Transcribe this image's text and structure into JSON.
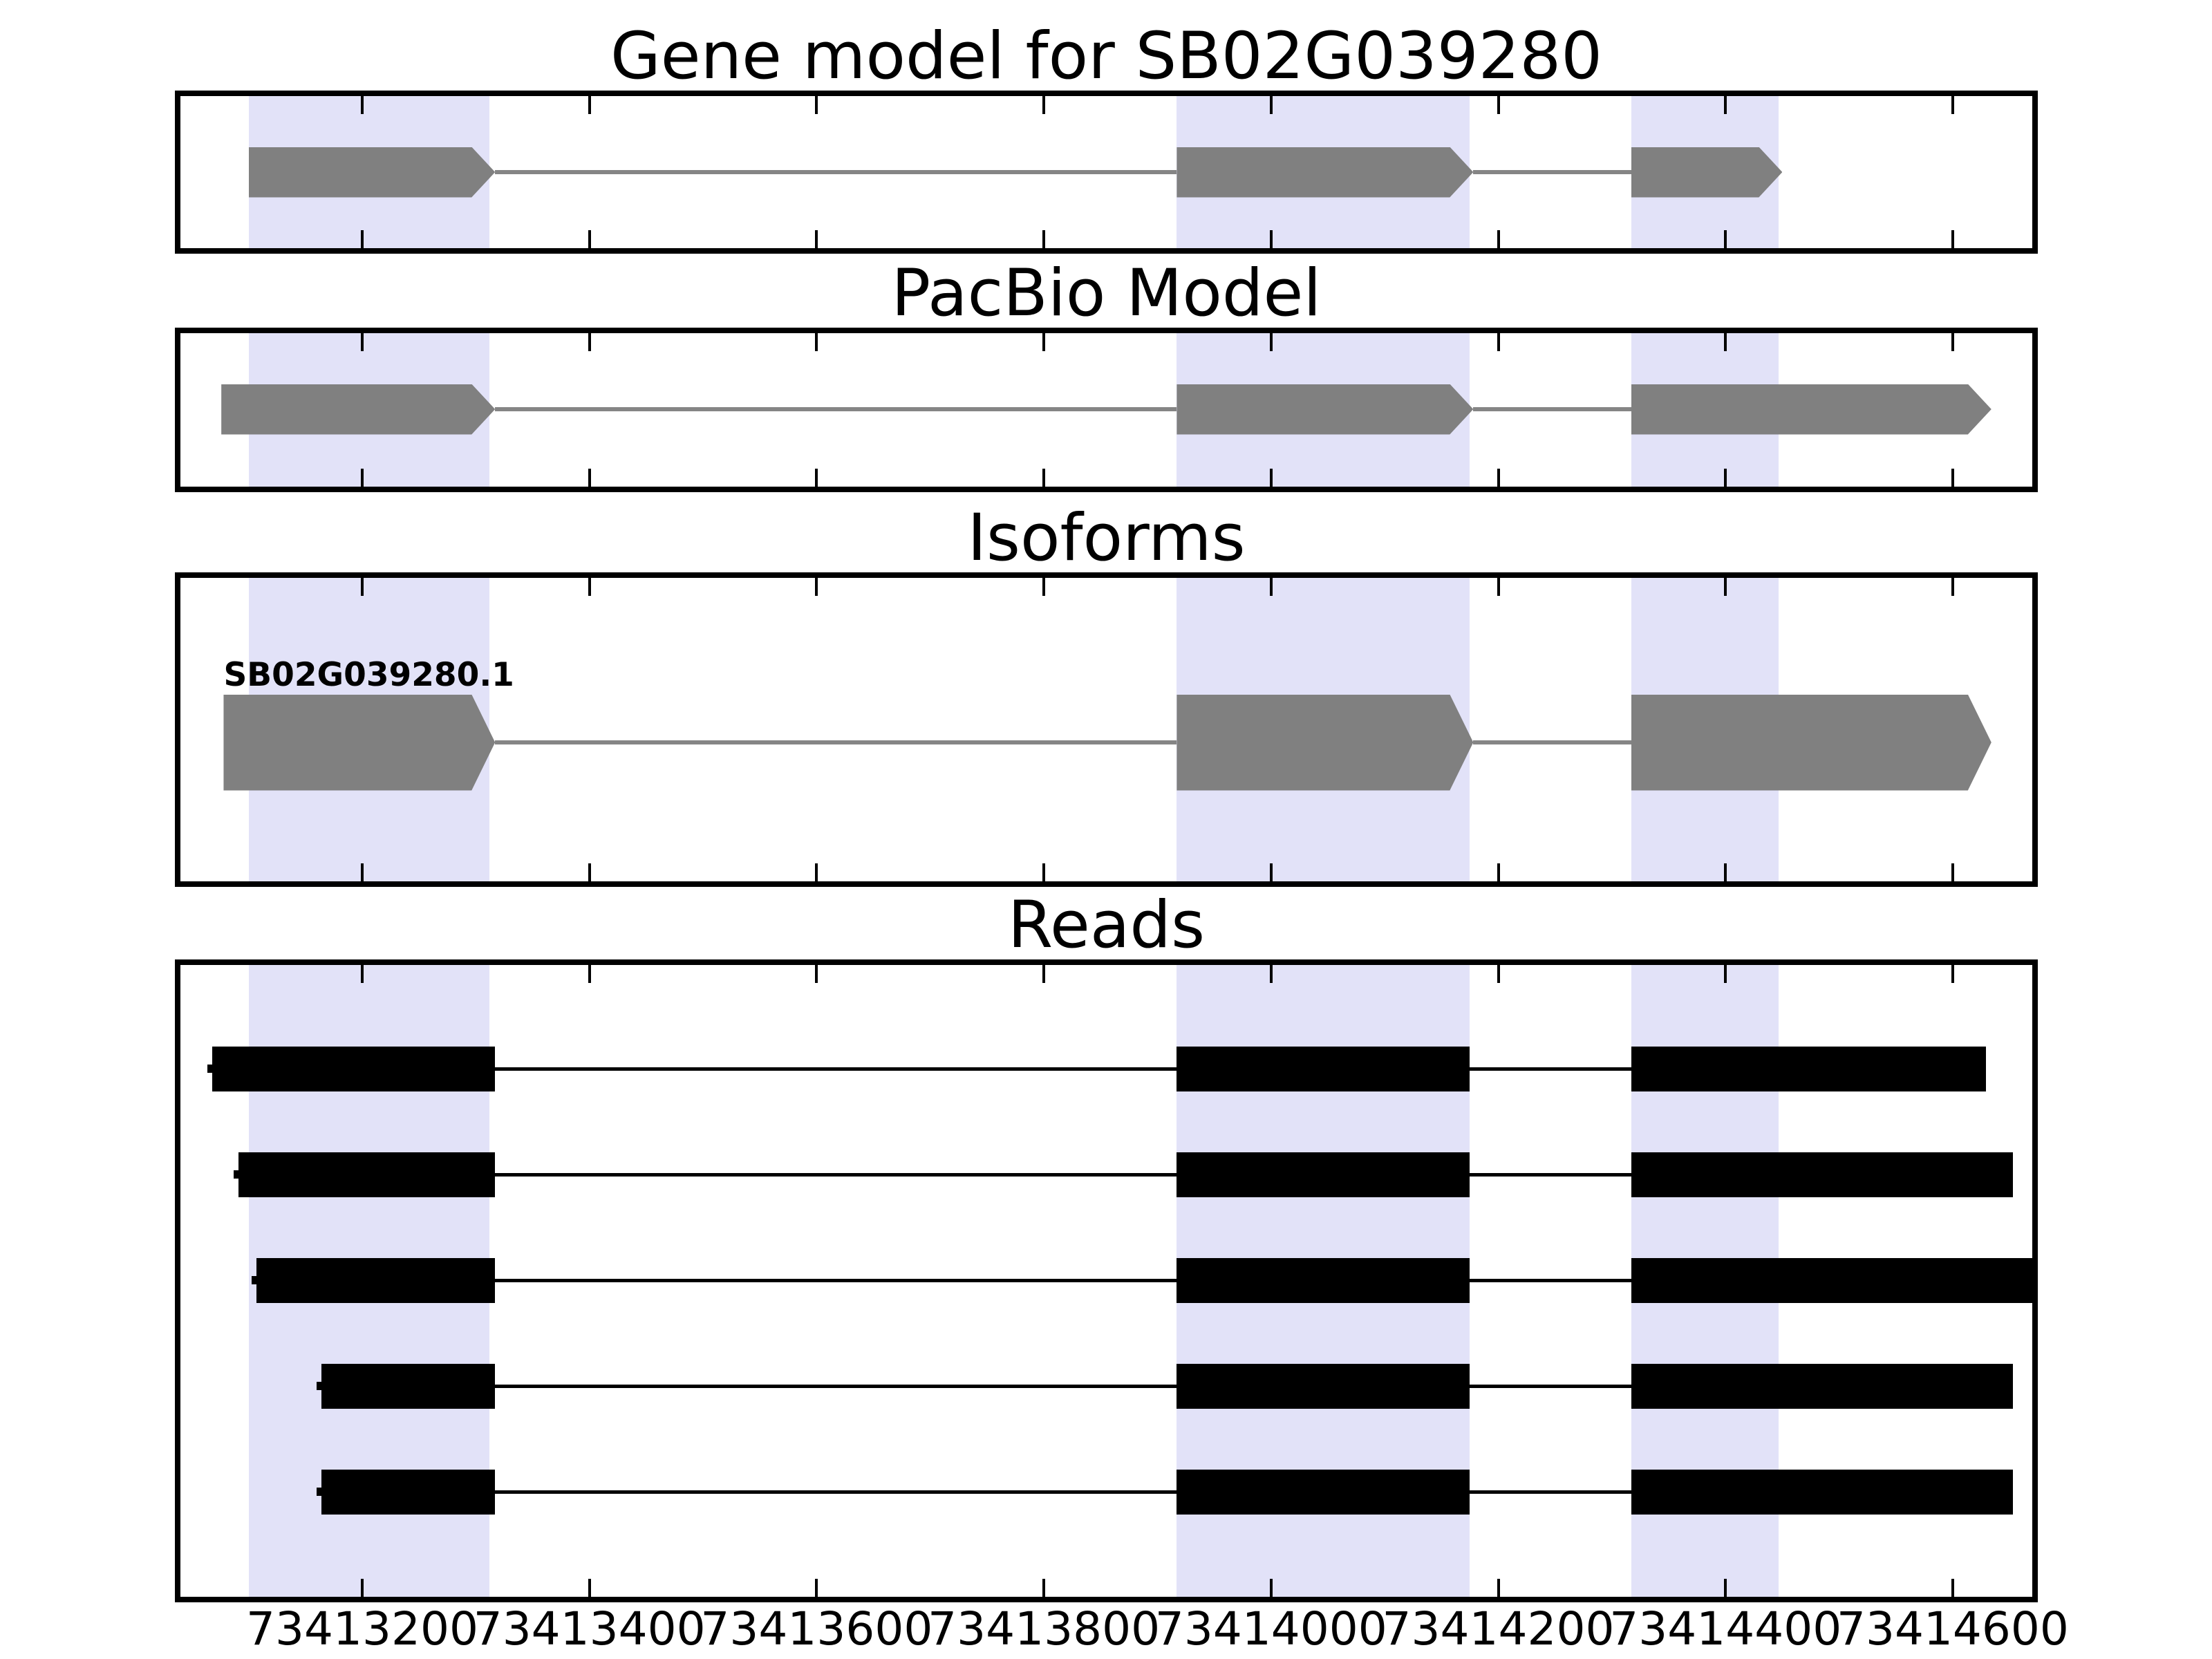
{
  "figure": {
    "background": "#ffffff",
    "band_color": "#e2e2f8",
    "model_color": "#808080",
    "read_color": "#000000",
    "spine_color": "#000000"
  },
  "chart_data": {
    "type": "other",
    "subtype": "genome-browser-gene-model-tracks",
    "title": "Gene model for SB02G039280",
    "gene_id": "SB02G039280",
    "xlabel": "",
    "ylabel": "",
    "grid": false,
    "legend": "none",
    "xlim": [
      73413040,
      73414670
    ],
    "xticks": [
      73413200,
      73413400,
      73413600,
      73413800,
      73414000,
      73414200,
      73414400,
      73414600
    ],
    "xtick_labels": [
      "73413200",
      "73413400",
      "73413600",
      "73413800",
      "73414000",
      "73414200",
      "73414400",
      "73414600"
    ],
    "strand_direction": "right",
    "highlight_regions": [
      [
        73413100,
        73413312
      ],
      [
        73413917,
        73414175
      ],
      [
        73414317,
        73414447
      ]
    ],
    "tracks": [
      {
        "name": "Gene model for SB02G039280",
        "kind": "model",
        "color": "#808080",
        "exons": [
          [
            73413100,
            73413317
          ],
          [
            73413917,
            73414178
          ],
          [
            73414317,
            73414450
          ]
        ]
      },
      {
        "name": "PacBio Model",
        "kind": "model",
        "color": "#808080",
        "exons": [
          [
            73413076,
            73413317
          ],
          [
            73413917,
            73414178
          ],
          [
            73414317,
            73414634
          ]
        ]
      },
      {
        "name": "Isoforms",
        "kind": "isoform",
        "color": "#808080",
        "isoforms": [
          {
            "label": "SB02G039280.1",
            "exons": [
              [
                73413078,
                73413317
              ],
              [
                73413917,
                73414178
              ],
              [
                73414317,
                73414634
              ]
            ]
          }
        ]
      },
      {
        "name": "Reads",
        "kind": "reads",
        "color": "#000000",
        "reads": [
          [
            [
              73413068,
              73413317
            ],
            [
              73413917,
              73414175
            ],
            [
              73414317,
              73414629
            ]
          ],
          [
            [
              73413091,
              73413317
            ],
            [
              73413917,
              73414175
            ],
            [
              73414317,
              73414653
            ]
          ],
          [
            [
              73413107,
              73413317
            ],
            [
              73413917,
              73414175
            ],
            [
              73414317,
              73414670
            ]
          ],
          [
            [
              73413164,
              73413317
            ],
            [
              73413917,
              73414175
            ],
            [
              73414317,
              73414653
            ]
          ],
          [
            [
              73413164,
              73413317
            ],
            [
              73413917,
              73414175
            ],
            [
              73414317,
              73414653
            ]
          ]
        ]
      }
    ]
  }
}
